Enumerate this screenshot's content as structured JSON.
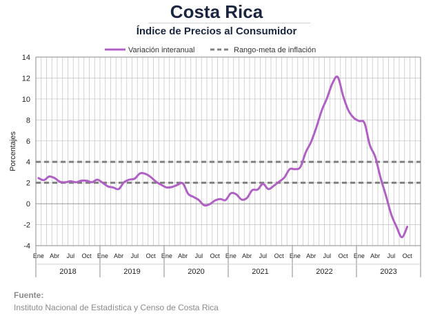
{
  "header": {
    "title": "Costa Rica",
    "subtitle": "Índice de Precios al Consumidor"
  },
  "footer": {
    "source_label": "Fuente:",
    "source_text": "Instituto Nacional de Estadística y Censo de Costa Rica"
  },
  "colors": {
    "series": "#b05fc4",
    "target": "#808080",
    "grid": "#c8c8c8"
  },
  "chart_data": {
    "type": "line",
    "title": "Índice de Precios al Consumidor",
    "xlabel": "",
    "ylabel": "Porcentajes",
    "ylim": [
      -4,
      14
    ],
    "yticks": [
      -4,
      -2,
      0,
      2,
      4,
      6,
      8,
      10,
      12,
      14
    ],
    "grid": true,
    "legend_position": "top",
    "month_labels": [
      "Ene",
      "Abr",
      "Jul",
      "Oct"
    ],
    "years": [
      "2018",
      "2019",
      "2020",
      "2021",
      "2022",
      "2023"
    ],
    "series": [
      {
        "name": "Variación interanual",
        "style": "solid",
        "start": "2018-01",
        "values": [
          2.45,
          2.25,
          2.6,
          2.45,
          2.1,
          2.05,
          2.15,
          2.05,
          2.2,
          2.2,
          2.05,
          2.3,
          2.0,
          1.65,
          1.55,
          1.4,
          2.05,
          2.3,
          2.4,
          2.9,
          2.85,
          2.55,
          2.1,
          1.8,
          1.55,
          1.6,
          1.8,
          1.95,
          0.95,
          0.65,
          0.35,
          -0.15,
          -0.05,
          0.3,
          0.45,
          0.35,
          1.0,
          0.9,
          0.4,
          0.55,
          1.3,
          1.35,
          1.9,
          1.4,
          1.7,
          2.1,
          2.5,
          3.3,
          3.3,
          3.5,
          4.9,
          5.9,
          7.3,
          8.9,
          10.1,
          11.5,
          12.1,
          10.3,
          8.9,
          8.2,
          7.9,
          7.7,
          5.6,
          4.5,
          2.5,
          0.8,
          -1.0,
          -2.2,
          -3.2,
          -2.2
        ]
      },
      {
        "name": "Rango-meta de inflación",
        "style": "dashed",
        "upper": 4,
        "lower": 2
      }
    ]
  }
}
